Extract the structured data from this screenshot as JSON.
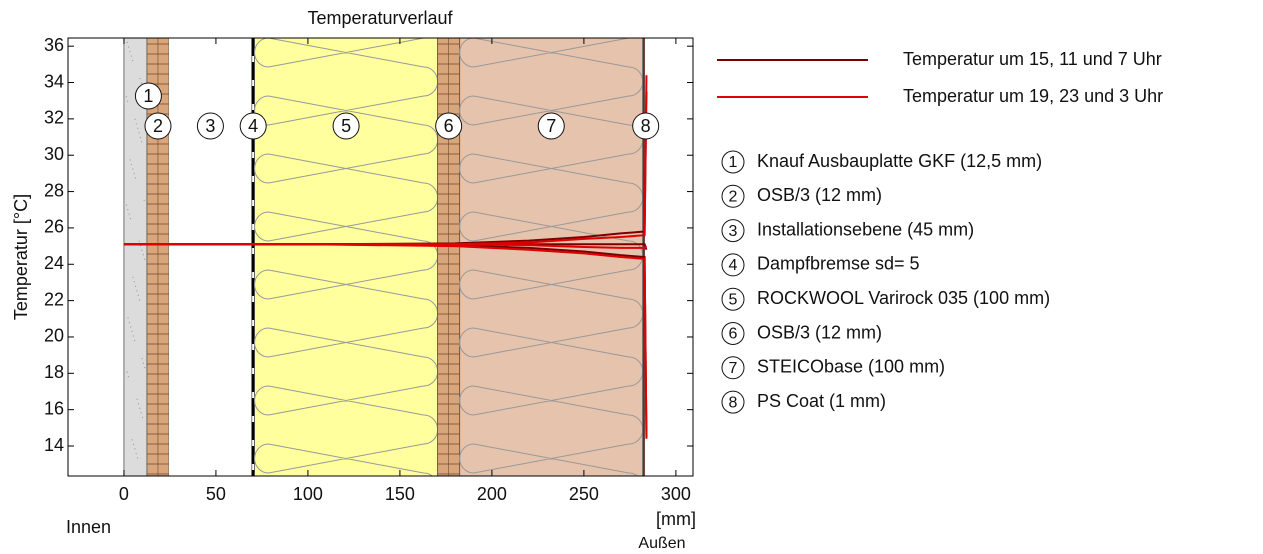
{
  "chart_data": {
    "type": "line",
    "title": "Temperaturverlauf",
    "ylabel": "Temperatur [°C]",
    "xlabel": "[mm]",
    "xlabel_left": "Innen",
    "xlabel_right": "Außen",
    "xlim": [
      -30.4,
      309.3
    ],
    "ylim": [
      12.35,
      36.45
    ],
    "xticks": [
      0,
      50,
      100,
      150,
      200,
      250,
      300
    ],
    "yticks": [
      14,
      16,
      18,
      20,
      22,
      24,
      26,
      28,
      30,
      32,
      34,
      36
    ],
    "x": [
      0,
      100,
      180,
      220,
      250,
      270,
      283,
      284
    ],
    "series": [
      {
        "name": "Temperatur um 15, 11 und 7 Uhr",
        "color": "#7a0000",
        "values": [
          [
            25.1,
            25.1,
            25.15,
            25.3,
            25.5,
            25.7,
            25.8,
            33.5
          ],
          [
            25.1,
            25.1,
            25.1,
            25.1,
            25.1,
            25.1,
            25.1,
            24.8
          ],
          [
            25.1,
            25.1,
            25.05,
            24.9,
            24.7,
            24.5,
            24.4,
            14.5
          ]
        ]
      },
      {
        "name": "Temperatur um 19, 23 und 3 Uhr",
        "color": "#e00000",
        "values": [
          [
            25.1,
            25.1,
            25.1,
            25.2,
            25.4,
            25.5,
            25.6,
            34.4
          ],
          [
            25.1,
            25.1,
            25.1,
            25.05,
            24.95,
            24.9,
            24.9,
            25.0
          ],
          [
            25.1,
            25.1,
            25.0,
            24.8,
            24.6,
            24.4,
            24.3,
            14.4
          ]
        ]
      }
    ],
    "layers": [
      {
        "label": "1",
        "name": "Knauf Ausbauplatte GKF (12,5 mm)",
        "start": 0,
        "end": 12.5,
        "fill": "#dcdcdc",
        "pattern": "plaster"
      },
      {
        "label": "2",
        "name": "OSB/3 (12 mm)",
        "start": 12.5,
        "end": 24.5,
        "fill": "#d9a57a",
        "pattern": "osb"
      },
      {
        "label": "3",
        "name": "Installationsebene (45 mm)",
        "start": 24.5,
        "end": 69.5,
        "fill": "#ffffff",
        "pattern": "air"
      },
      {
        "label": "4",
        "name": "Dampfbremse sd= 5",
        "start": 69.5,
        "end": 71,
        "fill": "#ffffff",
        "pattern": "membrane"
      },
      {
        "label": "5",
        "name": "ROCKWOOL Varirock 035 (100 mm)",
        "start": 71,
        "end": 170.5,
        "fill": "#ffff9e",
        "pattern": "wool"
      },
      {
        "label": "6",
        "name": "OSB/3 (12 mm)",
        "start": 170.5,
        "end": 182.5,
        "fill": "#d9a57a",
        "pattern": "osb"
      },
      {
        "label": "7",
        "name": "STEICObase (100 mm)",
        "start": 182.5,
        "end": 282,
        "fill": "#e6c3ad",
        "pattern": "wool"
      },
      {
        "label": "8",
        "name": "PS Coat (1 mm)",
        "start": 282,
        "end": 283,
        "fill": "#cc0000",
        "pattern": "coat"
      }
    ]
  }
}
